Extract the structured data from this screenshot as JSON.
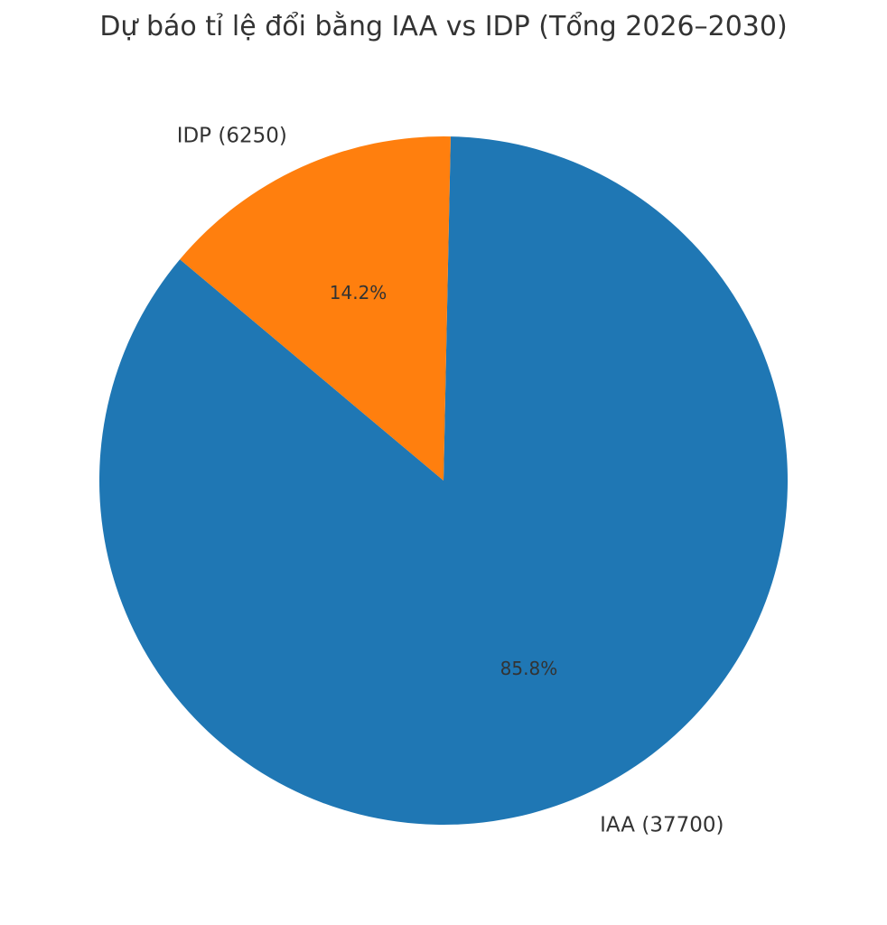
{
  "chart_data": {
    "type": "pie",
    "title": "Dự báo tỉ lệ đổi bằng IAA vs IDP (Tổng 2026–2030)",
    "categories": [
      "IAA",
      "IDP"
    ],
    "values": [
      37700,
      6250
    ],
    "labels": [
      "IAA (37700)",
      "IDP (6250)"
    ],
    "percent_labels": [
      "85.8%",
      "14.2%"
    ],
    "colors": [
      "#1f77b4",
      "#ff7f0e"
    ],
    "legend": "none",
    "grid": false
  }
}
